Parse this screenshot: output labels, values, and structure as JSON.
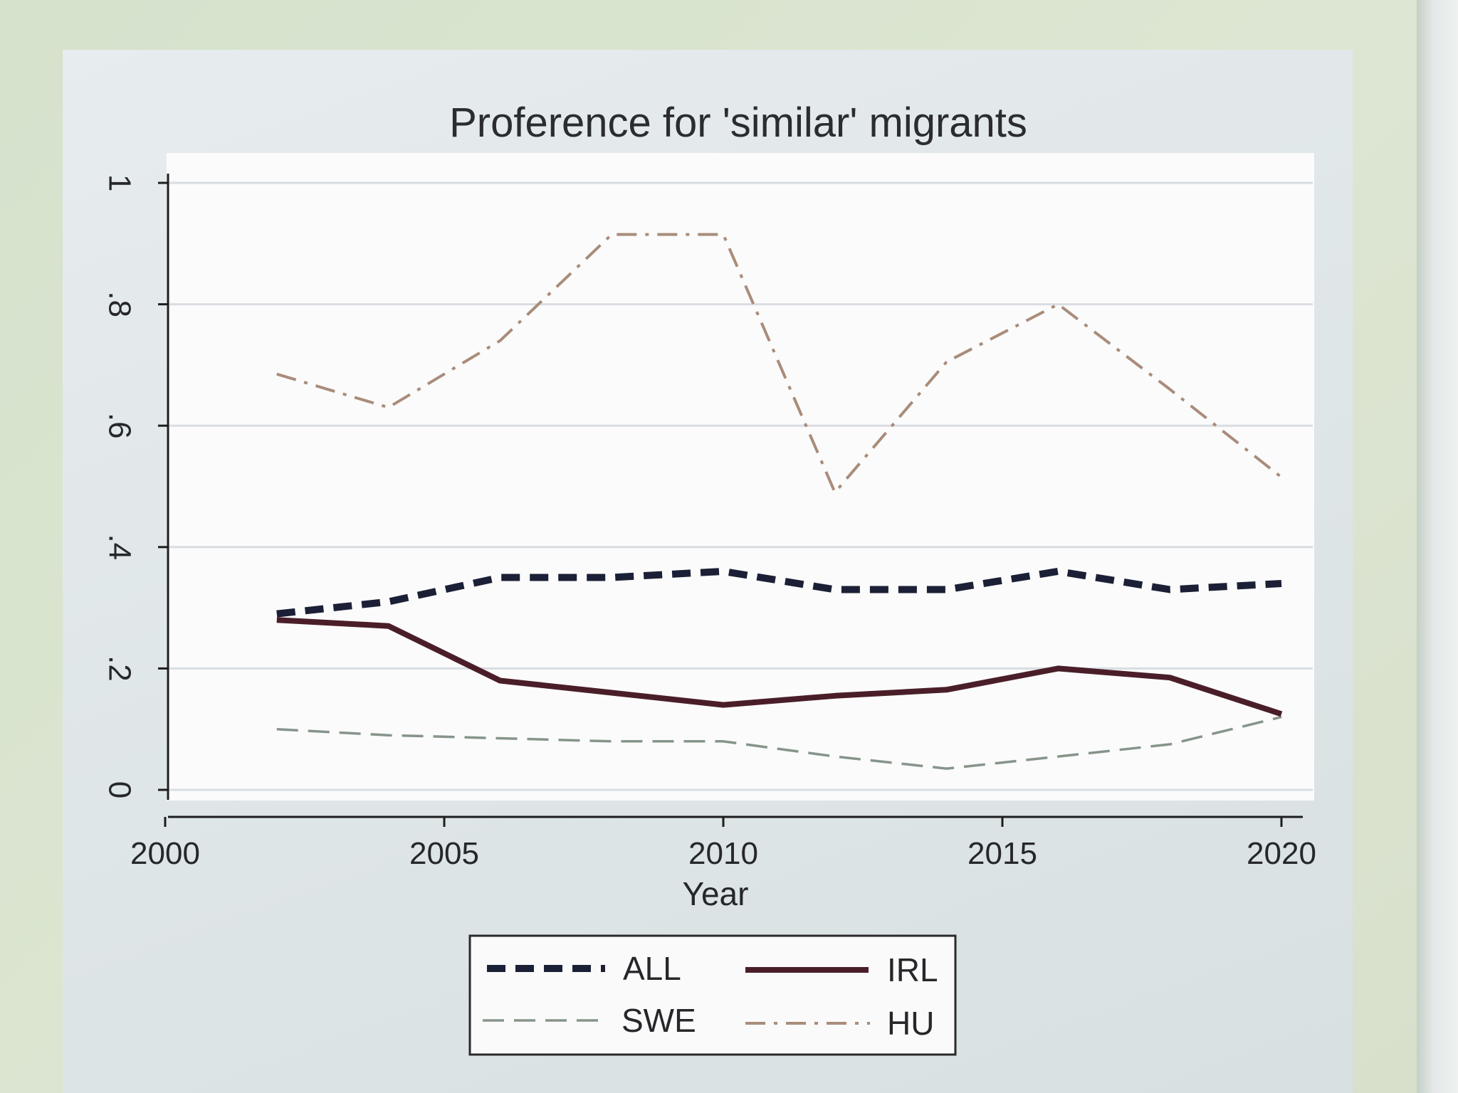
{
  "chart_data": {
    "type": "line",
    "title": "Proference for 'similar' migrants",
    "xlabel": "Year",
    "ylabel": "",
    "xlim": [
      2000,
      2020
    ],
    "ylim": [
      0,
      1
    ],
    "x_ticks": [
      2000,
      2005,
      2010,
      2015,
      2020
    ],
    "x_tick_labels": [
      "2000",
      "2005",
      "2010",
      "2015",
      "2020"
    ],
    "y_ticks": [
      0,
      0.2,
      0.4,
      0.6,
      0.8,
      1
    ],
    "y_tick_labels": [
      "0",
      ".2",
      ".4",
      ".6",
      ".8",
      "1"
    ],
    "grid": true,
    "legend_position": "bottom",
    "series": [
      {
        "name": "ALL",
        "color": "#1b2036",
        "style": "dashed-thick",
        "x": [
          2002,
          2004,
          2006,
          2008,
          2010,
          2012,
          2014,
          2016,
          2018,
          2020
        ],
        "y": [
          0.29,
          0.31,
          0.35,
          0.35,
          0.36,
          0.33,
          0.33,
          0.36,
          0.33,
          0.34
        ]
      },
      {
        "name": "IRL",
        "color": "#4a1e28",
        "style": "solid-thick",
        "x": [
          2002,
          2004,
          2006,
          2008,
          2010,
          2012,
          2014,
          2016,
          2018,
          2020
        ],
        "y": [
          0.28,
          0.27,
          0.18,
          0.16,
          0.14,
          0.155,
          0.165,
          0.2,
          0.185,
          0.125
        ]
      },
      {
        "name": "SWE",
        "color": "#86948a",
        "style": "long-dash",
        "x": [
          2002,
          2004,
          2006,
          2008,
          2010,
          2012,
          2014,
          2016,
          2018,
          2020
        ],
        "y": [
          0.1,
          0.09,
          0.085,
          0.08,
          0.08,
          0.055,
          0.035,
          0.055,
          0.075,
          0.12
        ]
      },
      {
        "name": "HU",
        "color": "#a98c7a",
        "style": "dash-dot",
        "x": [
          2002,
          2004,
          2006,
          2008,
          2010,
          2012,
          2014,
          2016,
          2018,
          2020
        ],
        "y": [
          0.685,
          0.63,
          0.74,
          0.915,
          0.915,
          0.49,
          0.705,
          0.8,
          0.66,
          0.515
        ]
      }
    ]
  }
}
